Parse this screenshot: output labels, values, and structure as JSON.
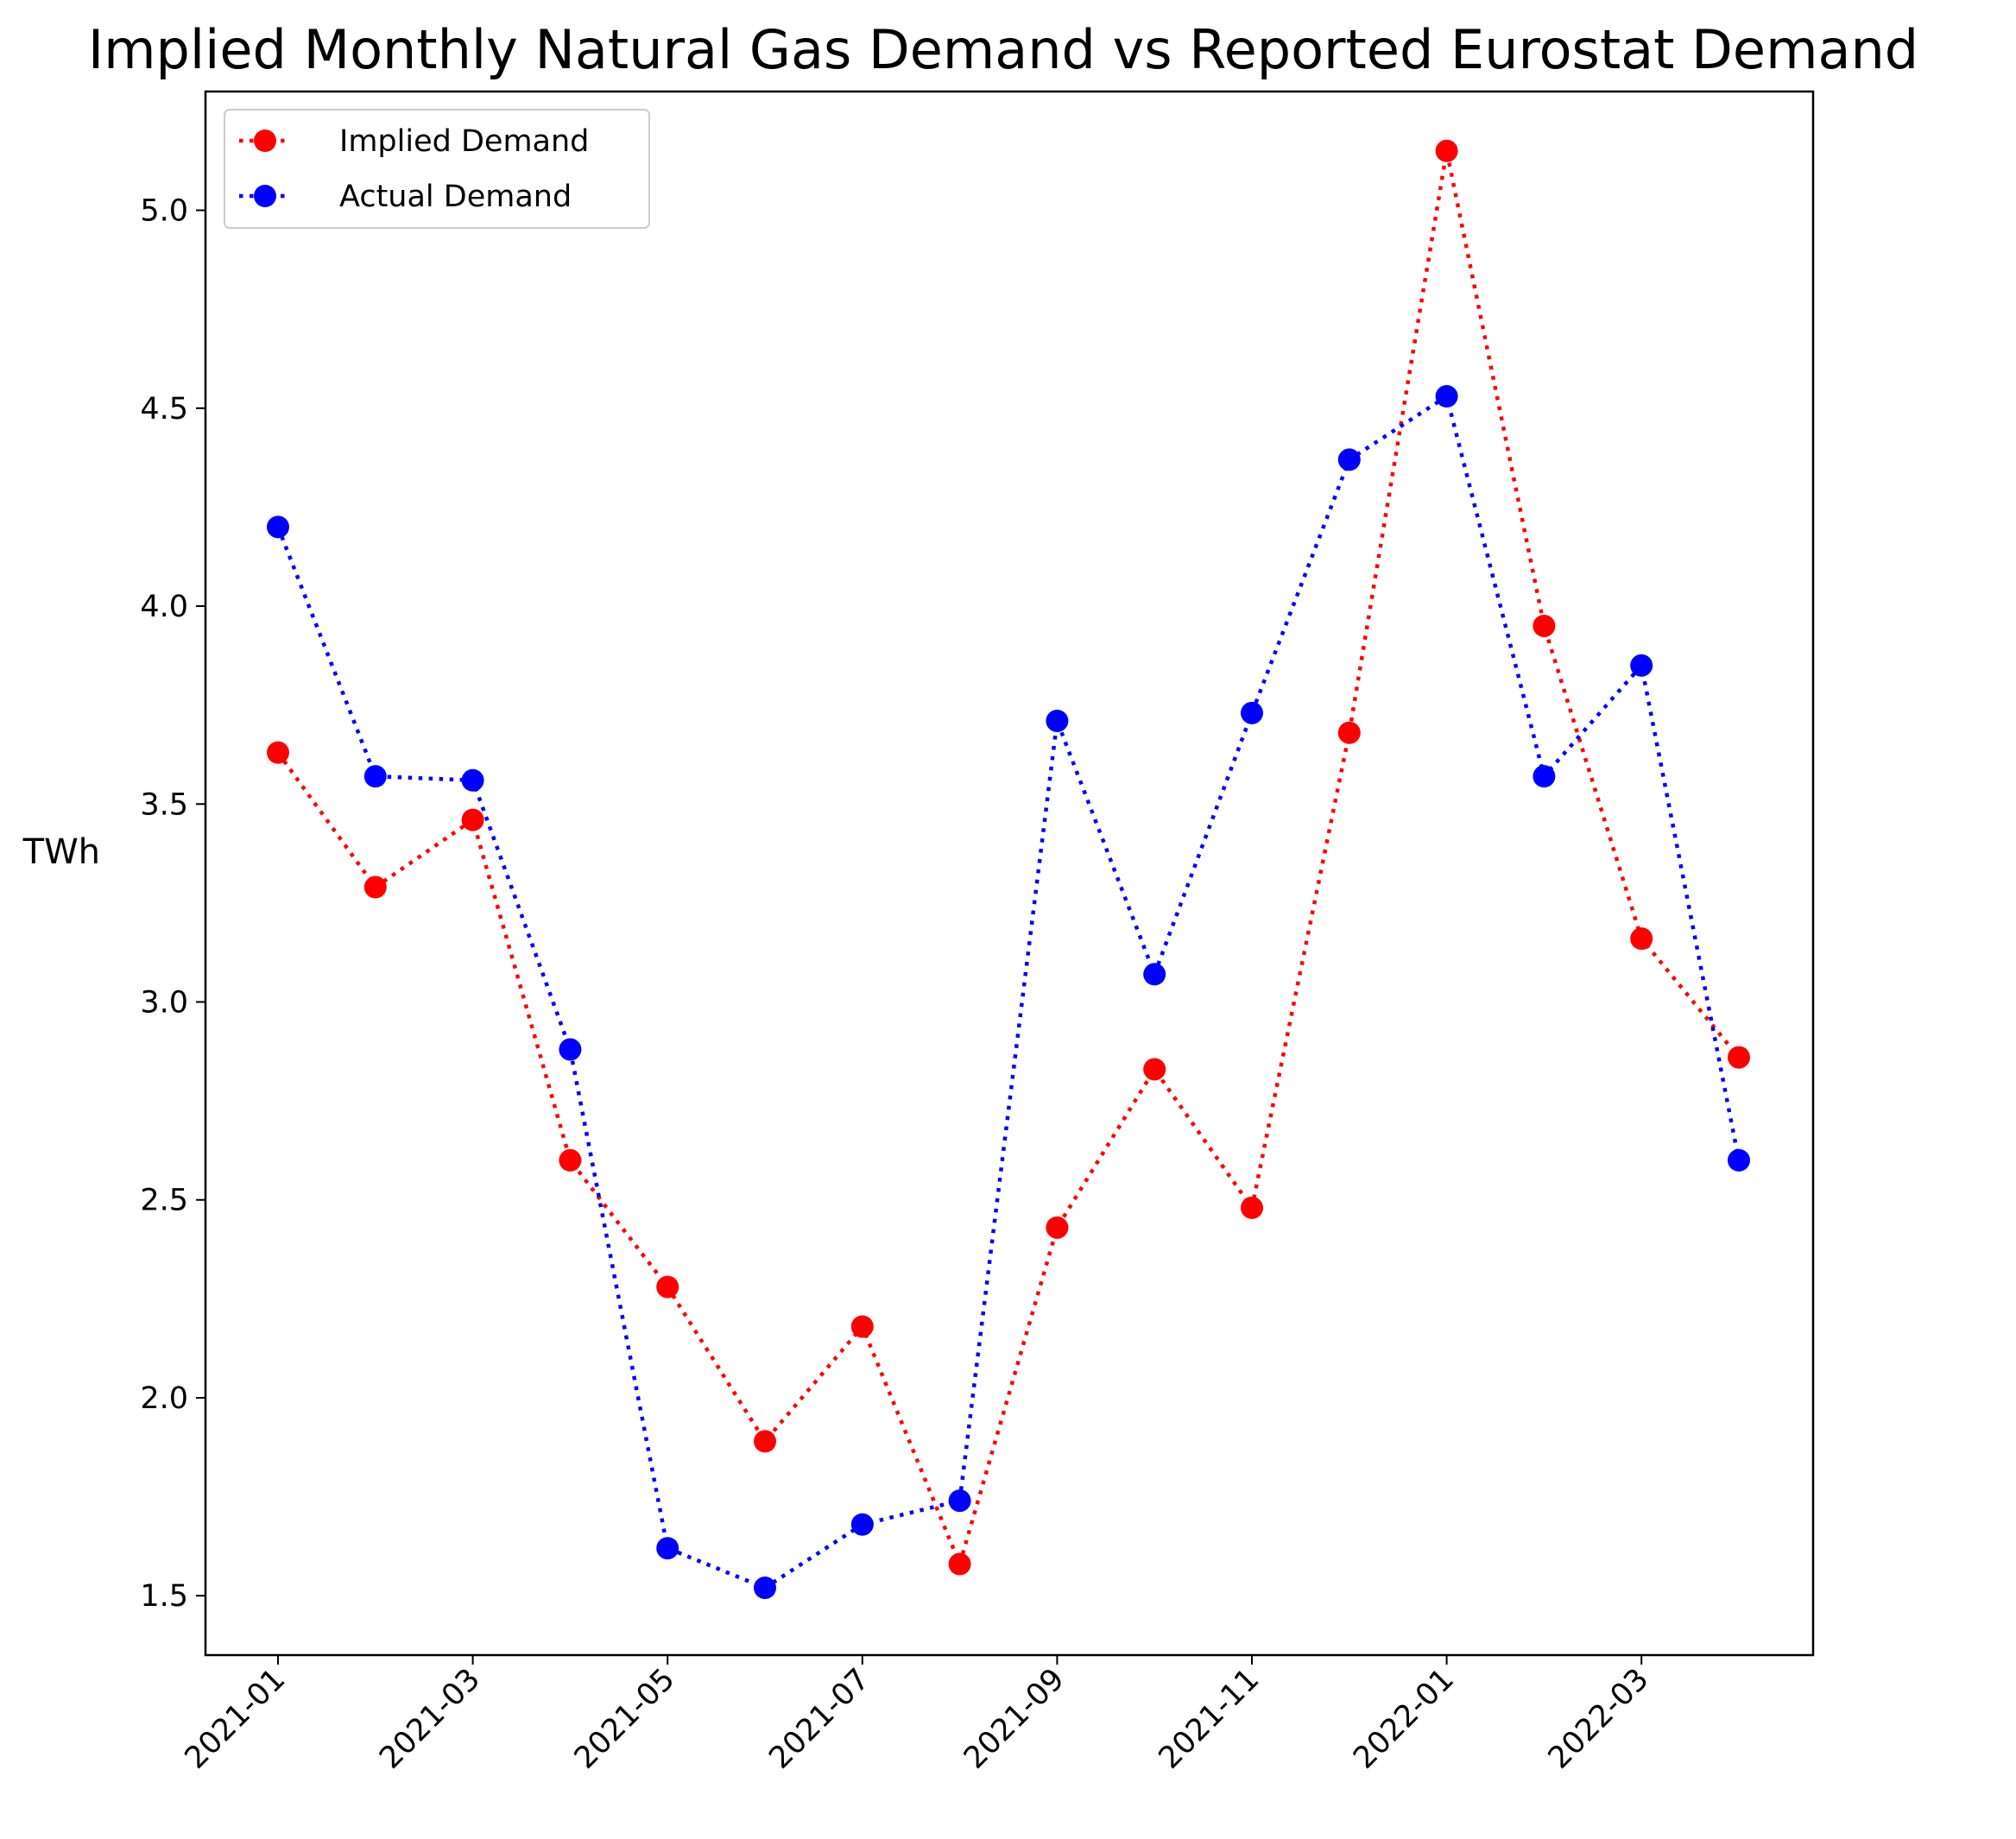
{
  "chart_data": {
    "type": "line",
    "title": "Implied Monthly Natural Gas Demand vs Reported Eurostat Demand",
    "xlabel": "",
    "ylabel": "TWh",
    "x": [
      "2021-01",
      "2021-02",
      "2021-03",
      "2021-04",
      "2021-05",
      "2021-06",
      "2021-07",
      "2021-08",
      "2021-09",
      "2021-10",
      "2021-11",
      "2021-12",
      "2022-01",
      "2022-02",
      "2022-03",
      "2022-04"
    ],
    "x_ticks": [
      "2021-01",
      "2021-03",
      "2021-05",
      "2021-07",
      "2021-09",
      "2021-11",
      "2022-01",
      "2022-03"
    ],
    "y_ticks": [
      "1.5",
      "2.0",
      "2.5",
      "3.0",
      "3.5",
      "4.0",
      "4.5",
      "5.0"
    ],
    "ylim": [
      1.35,
      5.3
    ],
    "grid": false,
    "legend_position": "top-left",
    "series": [
      {
        "name": "Implied Demand",
        "color": "#ff0000",
        "line_style": "dotted",
        "marker": "circle",
        "values": [
          3.63,
          3.29,
          3.46,
          2.6,
          2.28,
          1.89,
          2.18,
          1.58,
          2.43,
          2.83,
          2.48,
          3.68,
          5.15,
          3.95,
          3.16,
          2.86
        ]
      },
      {
        "name": "Actual Demand",
        "color": "#0000ff",
        "line_style": "dotted",
        "marker": "circle",
        "values": [
          4.2,
          3.57,
          3.56,
          2.88,
          1.62,
          1.52,
          1.68,
          1.74,
          3.71,
          3.07,
          3.73,
          4.37,
          4.53,
          3.57,
          3.85,
          2.6
        ]
      }
    ]
  }
}
